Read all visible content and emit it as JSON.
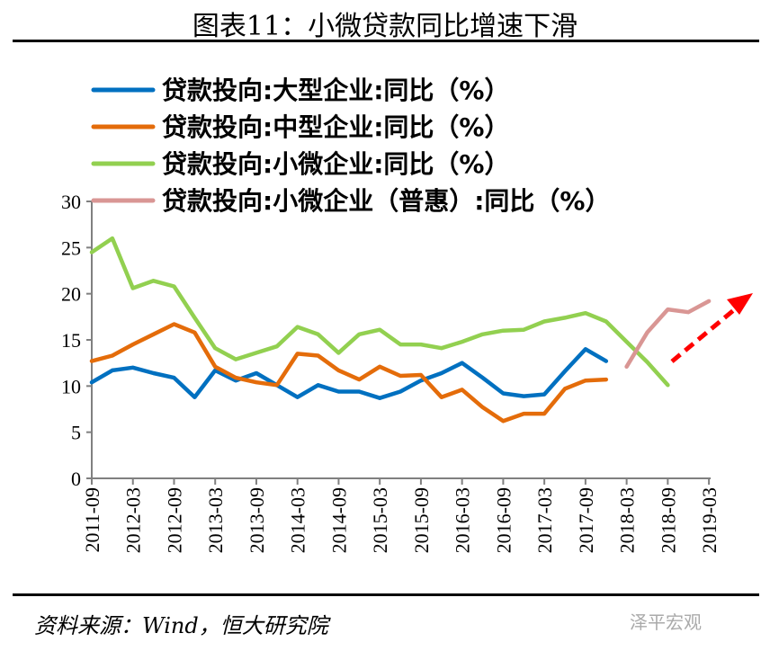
{
  "title": "图表11：小微贷款同比增速下滑",
  "source": "资料来源：Wind，恒大研究院",
  "watermark": "泽平宏观",
  "chart_data": {
    "type": "line",
    "title": "图表11：小微贷款同比增速下滑",
    "xlabel": "",
    "ylabel": "",
    "ylim": [
      0,
      30
    ],
    "yticks": [
      "0",
      "5",
      "10",
      "15",
      "20",
      "25",
      "30"
    ],
    "xtick_labels": [
      "2011-09",
      "2012-03",
      "2012-09",
      "2013-03",
      "2013-09",
      "2014-03",
      "2014-09",
      "2015-03",
      "2015-09",
      "2016-03",
      "2016-09",
      "2017-03",
      "2017-09",
      "2018-03",
      "2018-09",
      "2019-03"
    ],
    "x": [
      "2011-09",
      "2011-12",
      "2012-03",
      "2012-06",
      "2012-09",
      "2012-12",
      "2013-03",
      "2013-06",
      "2013-09",
      "2013-12",
      "2014-03",
      "2014-06",
      "2014-09",
      "2014-12",
      "2015-03",
      "2015-06",
      "2015-09",
      "2015-12",
      "2016-03",
      "2016-06",
      "2016-09",
      "2016-12",
      "2017-03",
      "2017-06",
      "2017-09",
      "2017-12",
      "2018-03",
      "2018-06",
      "2018-09",
      "2018-12",
      "2019-03"
    ],
    "grid": false,
    "legend_position": "top",
    "series": [
      {
        "name": "贷款投向:大型企业:同比（%）",
        "color": "#0070C0",
        "values": [
          10.4,
          11.7,
          12.0,
          11.4,
          10.9,
          8.8,
          11.7,
          10.6,
          11.4,
          10.1,
          8.8,
          10.1,
          9.4,
          9.4,
          8.7,
          9.4,
          10.6,
          11.4,
          12.5,
          10.9,
          9.2,
          8.9,
          9.1,
          11.6,
          14.0,
          12.7,
          null,
          null,
          null,
          null,
          null
        ]
      },
      {
        "name": "贷款投向:中型企业:同比（%）",
        "color": "#E46C0A",
        "values": [
          12.7,
          13.3,
          14.5,
          15.6,
          16.7,
          15.8,
          12.1,
          10.9,
          10.4,
          10.1,
          13.5,
          13.3,
          11.7,
          10.7,
          12.1,
          11.1,
          11.2,
          8.8,
          9.6,
          7.7,
          6.2,
          7.0,
          7.0,
          9.7,
          10.6,
          10.7,
          null,
          null,
          null,
          null,
          null
        ]
      },
      {
        "name": "贷款投向:小微企业:同比（%）",
        "color": "#92D050",
        "values": [
          24.5,
          26.0,
          20.6,
          21.4,
          20.8,
          17.4,
          14.1,
          12.9,
          13.6,
          14.3,
          16.4,
          15.6,
          13.6,
          15.6,
          16.1,
          14.5,
          14.5,
          14.1,
          14.8,
          15.6,
          16.0,
          16.1,
          17.0,
          17.4,
          17.9,
          17.0,
          14.8,
          12.6,
          10.1,
          null,
          null
        ]
      },
      {
        "name": "贷款投向:小微企业（普惠）:同比（%）",
        "color": "#D99694",
        "values": [
          null,
          null,
          null,
          null,
          null,
          null,
          null,
          null,
          null,
          null,
          null,
          null,
          null,
          null,
          null,
          null,
          null,
          null,
          null,
          null,
          null,
          null,
          null,
          null,
          null,
          null,
          12.1,
          15.8,
          18.3,
          18.0,
          19.2
        ]
      }
    ],
    "annotation": {
      "type": "dashed-arrow",
      "color": "#FF0000",
      "direction": "up-right"
    }
  }
}
